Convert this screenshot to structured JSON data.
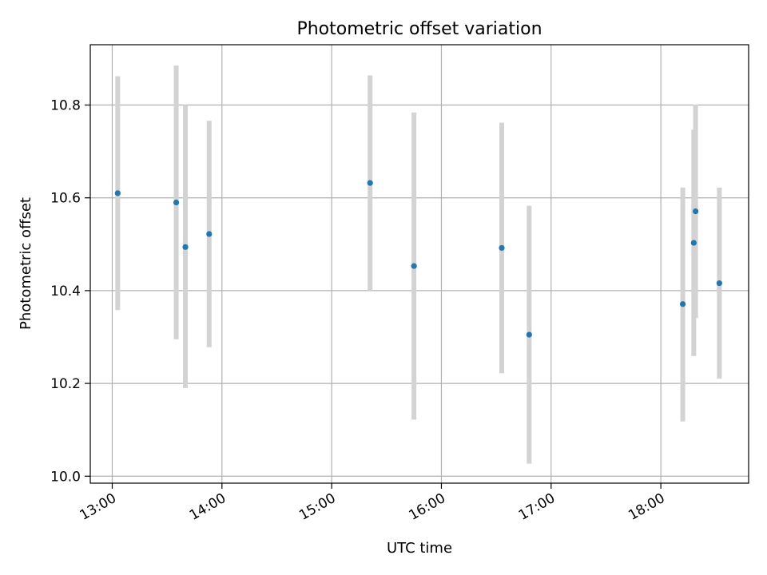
{
  "chart_data": {
    "type": "scatter",
    "title": "Photometric offset variation",
    "xlabel": "UTC time",
    "ylabel": "Photometric offset",
    "x_type": "time",
    "xlim": [
      "12:48",
      "18:48"
    ],
    "ylim": [
      9.985,
      10.93
    ],
    "x_ticks": [
      "13:00",
      "14:00",
      "15:00",
      "16:00",
      "17:00",
      "18:00"
    ],
    "y_ticks": [
      "10.0",
      "10.2",
      "10.4",
      "10.6",
      "10.8"
    ],
    "grid": true,
    "legend": "none",
    "marker_color": "#1f77b4",
    "errorbar_color": "#d3d3d3",
    "points": [
      {
        "time": "13:03",
        "value": 10.61,
        "error_low": 10.358,
        "error_high": 10.862
      },
      {
        "time": "13:35",
        "value": 10.59,
        "error_low": 10.295,
        "error_high": 10.885
      },
      {
        "time": "13:40",
        "value": 10.494,
        "error_low": 10.19,
        "error_high": 10.8
      },
      {
        "time": "13:53",
        "value": 10.522,
        "error_low": 10.278,
        "error_high": 10.766
      },
      {
        "time": "15:21",
        "value": 10.632,
        "error_low": 10.4,
        "error_high": 10.864
      },
      {
        "time": "15:45",
        "value": 10.453,
        "error_low": 10.122,
        "error_high": 10.784
      },
      {
        "time": "16:33",
        "value": 10.492,
        "error_low": 10.222,
        "error_high": 10.762
      },
      {
        "time": "16:48",
        "value": 10.305,
        "error_low": 10.027,
        "error_high": 10.583
      },
      {
        "time": "18:12",
        "value": 10.371,
        "error_low": 10.118,
        "error_high": 10.622
      },
      {
        "time": "18:18",
        "value": 10.503,
        "error_low": 10.259,
        "error_high": 10.747
      },
      {
        "time": "18:19",
        "value": 10.571,
        "error_low": 10.341,
        "error_high": 10.801
      },
      {
        "time": "18:32",
        "value": 10.416,
        "error_low": 10.21,
        "error_high": 10.622
      }
    ]
  }
}
